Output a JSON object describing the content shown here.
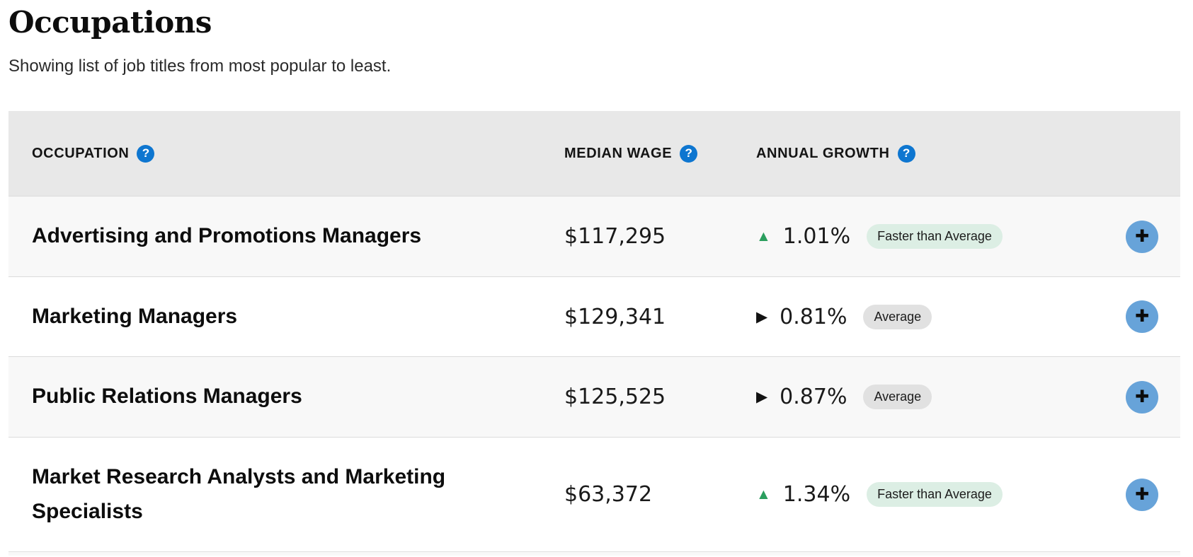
{
  "page": {
    "title": "Occupations",
    "subtitle": "Showing list of job titles from most popular to least."
  },
  "table": {
    "columns": [
      {
        "label": "OCCUPATION"
      },
      {
        "label": "MEDIAN WAGE"
      },
      {
        "label": "ANNUAL GROWTH"
      }
    ],
    "help_icon_glyph": "?",
    "expand_icon_glyph": "✚",
    "direction_icons": {
      "up": "▲",
      "right": "▶"
    },
    "rows": [
      {
        "occupation": "Advertising and Promotions Managers",
        "median_wage": "$117,295",
        "annual_growth": "1.01%",
        "direction": "up",
        "badge": "Faster than Average",
        "badge_style": "green"
      },
      {
        "occupation": "Marketing Managers",
        "median_wage": "$129,341",
        "annual_growth": "0.81%",
        "direction": "right",
        "badge": "Average",
        "badge_style": "gray"
      },
      {
        "occupation": "Public Relations Managers",
        "median_wage": "$125,525",
        "annual_growth": "0.87%",
        "direction": "right",
        "badge": "Average",
        "badge_style": "gray"
      },
      {
        "occupation": "Market Research Analysts and Marketing Specialists",
        "median_wage": "$63,372",
        "annual_growth": "1.34%",
        "direction": "up",
        "badge": "Faster than Average",
        "badge_style": "green"
      }
    ]
  },
  "colors": {
    "help_icon_blue": "#0e76d0",
    "expand_button_blue": "#67a3d9",
    "growth_up_green": "#2b9e5e",
    "badge_green_bg": "#dceee4",
    "badge_gray_bg": "#e1e1e1",
    "header_bg": "#e8e8e8",
    "zebra_row_bg": "#f8f8f8"
  }
}
